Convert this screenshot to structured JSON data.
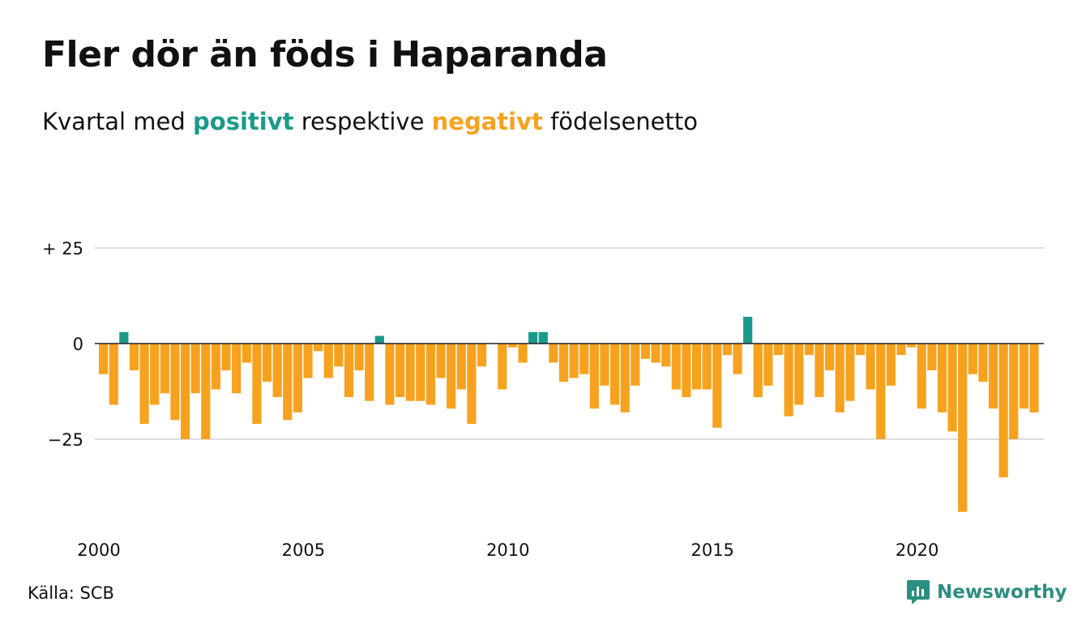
{
  "title": "Fler dör än föds i Haparanda",
  "subtitle": {
    "prefix": "Kvartal med ",
    "positive_word": "positivt",
    "middle": " respektive ",
    "negative_word": "negativt",
    "suffix": " födelsenetto"
  },
  "source": "Källa: SCB",
  "brand": "Newsworthy",
  "colors": {
    "positive": "#1a9a8a",
    "negative": "#f7a21e",
    "grid": "#dddddd",
    "text": "#111111",
    "brand": "#2b8e80"
  },
  "chart_data": {
    "type": "bar",
    "x_unit": "quarter",
    "x_start": "2000 Q1",
    "values": [
      -8,
      -16,
      3,
      -7,
      -21,
      -16,
      -13,
      -20,
      -25,
      -13,
      -25,
      -12,
      -7,
      -13,
      -5,
      -21,
      -10,
      -14,
      -20,
      -18,
      -9,
      -2,
      -9,
      -6,
      -14,
      -7,
      -15,
      2,
      -16,
      -14,
      -15,
      -15,
      -16,
      -9,
      -17,
      -12,
      -21,
      -6,
      0,
      -12,
      -1,
      -5,
      3,
      3,
      -5,
      -10,
      -9,
      -8,
      -17,
      -11,
      -16,
      -18,
      -11,
      -4,
      -5,
      -6,
      -12,
      -14,
      -12,
      -12,
      -22,
      -3,
      -8,
      7,
      -14,
      -11,
      -3,
      -19,
      -16,
      -3,
      -14,
      -7,
      -18,
      -15,
      -3,
      -12,
      -25,
      -11,
      -3,
      -1,
      -17,
      -7,
      -18,
      -23,
      -44,
      -8,
      -10,
      -17,
      -35,
      -25,
      -17,
      -18
    ],
    "x_ticks": [
      "2000",
      "2005",
      "2010",
      "2015",
      "2020"
    ],
    "y_ticks": [
      {
        "value": 25,
        "label": "+ 25"
      },
      {
        "value": 0,
        "label": "0"
      },
      {
        "value": -25,
        "label": "−25"
      }
    ],
    "ylim": [
      -46,
      26
    ],
    "grid": true,
    "legend": "in-subtitle"
  }
}
